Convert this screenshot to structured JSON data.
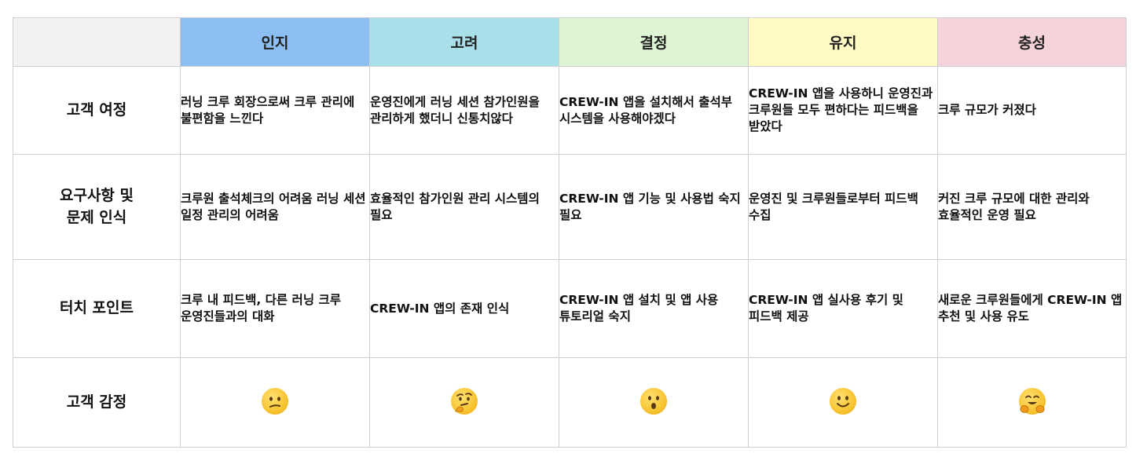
{
  "header": {
    "corner": "",
    "stages": [
      {
        "label": "인지",
        "color": "#8DBEF1"
      },
      {
        "label": "고려",
        "color": "#A8DFE8"
      },
      {
        "label": "결정",
        "color": "#DDF5D4"
      },
      {
        "label": "유지",
        "color": "#FFF9C4"
      },
      {
        "label": "충성",
        "color": "#F5D3DA"
      }
    ]
  },
  "rows": [
    {
      "label": "고객 여정",
      "cells": [
        "러닝 크루 회장으로써 크루 관리에 불편함을 느낀다",
        "운영진에게 러닝 세션 참가인원을 관리하게 했더니 신통치않다",
        "CREW-IN 앱을 설치해서 출석부 시스템을 사용해야겠다",
        "CREW-IN 앱을 사용하니 운영진과 크루원들 모두 편하다는 피드백을 받았다",
        "크루 규모가 커졌다"
      ]
    },
    {
      "label": "요구사항 및 문제 인식",
      "cells": [
        "크루원 출석체크의 어려움 러닝 세션 일정 관리의 어려움",
        "효율적인 참가인원 관리 시스템의 필요",
        "CREW-IN 앱 기능 및 사용법 숙지 필요",
        "운영진 및 크루원들로부터 피드백 수집",
        "커진 크루 규모에 대한 관리와 효율적인 운영 필요"
      ]
    },
    {
      "label": "터치 포인트",
      "cells": [
        "크루 내 피드백, 다른 러닝 크루 운영진들과의 대화",
        "CREW-IN 앱의 존재 인식",
        "CREW-IN 앱 설치 및 앱 사용 튜토리얼 숙지",
        "CREW-IN 앱 실사용 후기 및 피드백 제공",
        "새로운 크루원들에게 CREW-IN 앱 추천 및 사용 유도"
      ]
    },
    {
      "label": "고객 감정",
      "emotions": [
        "confused-face-icon",
        "thinking-face-icon",
        "surprised-face-icon",
        "smiling-face-icon",
        "hugging-face-icon"
      ]
    }
  ]
}
